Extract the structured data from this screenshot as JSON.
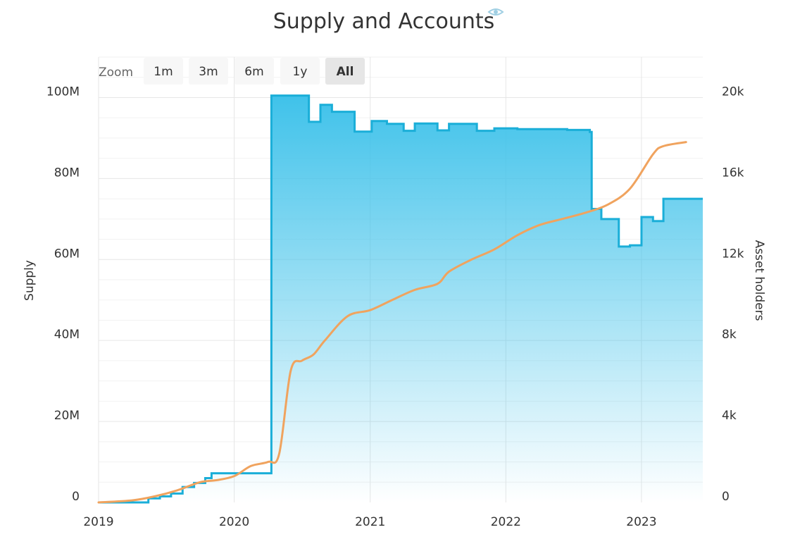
{
  "chart_data": {
    "type": "area",
    "title": "Supply and Accounts",
    "title_icon": "eye-icon",
    "ylabel": "Supply",
    "y2label": "Asset holders",
    "xlim": [
      "2019-01-01",
      "2023-06-15"
    ],
    "ylim": [
      0,
      110000000
    ],
    "y2lim": [
      0,
      22000
    ],
    "x_ticks": [
      "2019",
      "2020",
      "2021",
      "2022",
      "2023"
    ],
    "y_ticks": [
      {
        "label": "0",
        "value": 0
      },
      {
        "label": "20M",
        "value": 20000000
      },
      {
        "label": "40M",
        "value": 40000000
      },
      {
        "label": "60M",
        "value": 60000000
      },
      {
        "label": "80M",
        "value": 80000000
      },
      {
        "label": "100M",
        "value": 100000000
      }
    ],
    "y2_ticks": [
      {
        "label": "0",
        "value": 0
      },
      {
        "label": "4k",
        "value": 4000
      },
      {
        "label": "8k",
        "value": 8000
      },
      {
        "label": "12k",
        "value": 12000
      },
      {
        "label": "16k",
        "value": 16000
      },
      {
        "label": "20k",
        "value": 20000
      }
    ],
    "grid": true,
    "series": [
      {
        "axis": "left",
        "kind": "step-area",
        "color": "#1aaed8",
        "fill_top": "#3fc2ea",
        "points": [
          [
            "2019-01-01",
            0
          ],
          [
            "2019-05-15",
            1000000
          ],
          [
            "2019-06-15",
            1500000
          ],
          [
            "2019-07-15",
            2200000
          ],
          [
            "2019-08-15",
            3800000
          ],
          [
            "2019-09-15",
            4800000
          ],
          [
            "2019-10-15",
            6000000
          ],
          [
            "2019-11-01",
            7200000
          ],
          [
            "2020-04-10",
            100500000
          ],
          [
            "2020-07-20",
            94000000
          ],
          [
            "2020-08-20",
            98200000
          ],
          [
            "2020-09-20",
            96500000
          ],
          [
            "2020-11-20",
            91600000
          ],
          [
            "2021-01-05",
            94200000
          ],
          [
            "2021-02-15",
            93500000
          ],
          [
            "2021-04-01",
            91800000
          ],
          [
            "2021-05-01",
            93600000
          ],
          [
            "2021-07-01",
            91900000
          ],
          [
            "2021-08-01",
            93500000
          ],
          [
            "2021-10-15",
            91800000
          ],
          [
            "2021-12-01",
            92400000
          ],
          [
            "2022-02-01",
            92200000
          ],
          [
            "2022-06-15",
            92000000
          ],
          [
            "2022-08-15",
            91500000
          ],
          [
            "2022-08-20",
            72500000
          ],
          [
            "2022-09-15",
            70000000
          ],
          [
            "2022-11-01",
            63200000
          ],
          [
            "2022-12-01",
            63500000
          ],
          [
            "2023-01-01",
            70500000
          ],
          [
            "2023-02-01",
            69500000
          ],
          [
            "2023-03-01",
            75000000
          ],
          [
            "2023-06-15",
            75000000
          ]
        ]
      },
      {
        "axis": "right",
        "kind": "smooth-line",
        "color": "#f0a35e",
        "points": [
          [
            "2019-01-01",
            0
          ],
          [
            "2019-04-01",
            100
          ],
          [
            "2019-06-01",
            300
          ],
          [
            "2019-08-01",
            600
          ],
          [
            "2019-10-01",
            1000
          ],
          [
            "2019-11-15",
            1100
          ],
          [
            "2020-01-01",
            1300
          ],
          [
            "2020-02-15",
            1800
          ],
          [
            "2020-04-01",
            2000
          ],
          [
            "2020-05-01",
            2400
          ],
          [
            "2020-06-01",
            6500
          ],
          [
            "2020-07-01",
            7000
          ],
          [
            "2020-08-01",
            7300
          ],
          [
            "2020-09-01",
            8000
          ],
          [
            "2020-11-01",
            9200
          ],
          [
            "2021-01-01",
            9500
          ],
          [
            "2021-03-01",
            10000
          ],
          [
            "2021-05-01",
            10500
          ],
          [
            "2021-07-01",
            10800
          ],
          [
            "2021-08-01",
            11400
          ],
          [
            "2021-10-01",
            12000
          ],
          [
            "2021-12-01",
            12500
          ],
          [
            "2022-02-01",
            13200
          ],
          [
            "2022-04-01",
            13700
          ],
          [
            "2022-06-01",
            14000
          ],
          [
            "2022-08-01",
            14300
          ],
          [
            "2022-10-01",
            14700
          ],
          [
            "2022-12-01",
            15500
          ],
          [
            "2023-02-01",
            17200
          ],
          [
            "2023-03-01",
            17600
          ],
          [
            "2023-05-01",
            17800
          ]
        ]
      }
    ]
  },
  "zoom": {
    "label": "Zoom",
    "buttons": [
      {
        "label": "1m",
        "active": false
      },
      {
        "label": "3m",
        "active": false
      },
      {
        "label": "6m",
        "active": false
      },
      {
        "label": "1y",
        "active": false
      },
      {
        "label": "All",
        "active": true
      }
    ]
  }
}
